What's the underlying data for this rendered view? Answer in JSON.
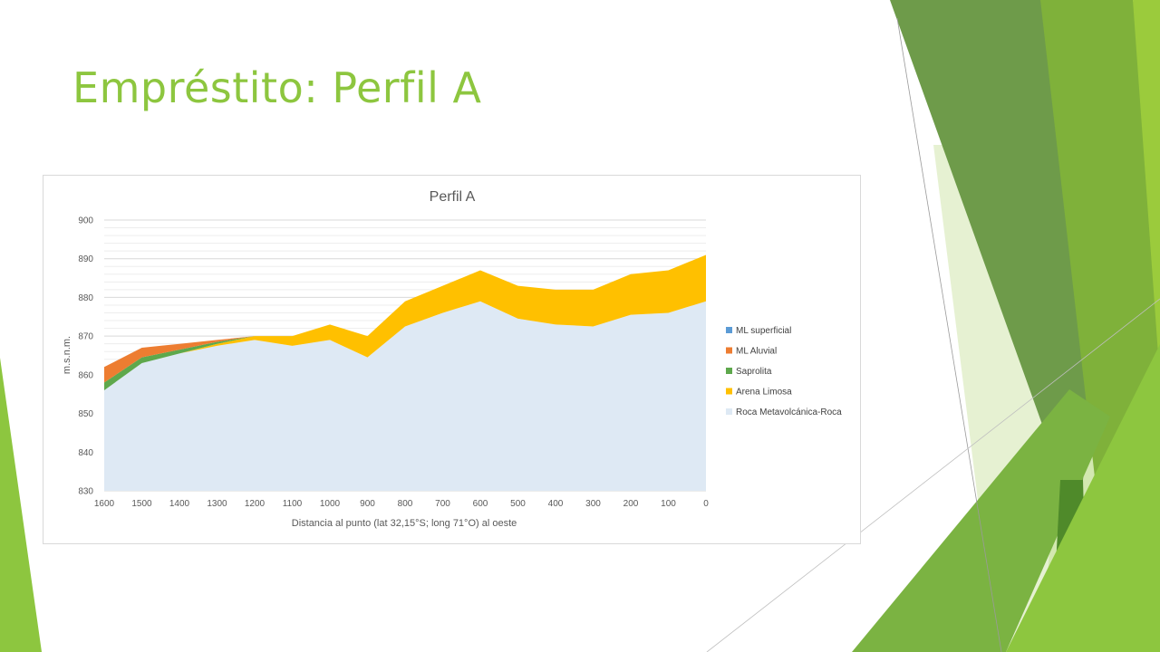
{
  "slide": {
    "title": "Empréstito: Perfil A",
    "title_color": "#8DC63F",
    "accent_colors": [
      "#8DC63F",
      "#6E9B4A",
      "#7FB13A",
      "#D3E8B0",
      "#4F8A2A"
    ]
  },
  "chart_data": {
    "type": "area",
    "stacked": true,
    "title": "Perfil A",
    "xlabel": "Distancia al punto (lat 32,15°S; long 71°O) al oeste",
    "ylabel": "m.s.n.m.",
    "x": [
      1600,
      1500,
      1400,
      1300,
      1200,
      1100,
      1000,
      900,
      800,
      700,
      600,
      500,
      400,
      300,
      200,
      100,
      0
    ],
    "x_ticks": [
      "1600",
      "1500",
      "1400",
      "1300",
      "1200",
      "1100",
      "1000",
      "900",
      "800",
      "700",
      "600",
      "500",
      "400",
      "300",
      "200",
      "100",
      "0"
    ],
    "y_ticks": [
      "830",
      "840",
      "850",
      "860",
      "870",
      "880",
      "890",
      "900"
    ],
    "ylim": [
      830,
      900
    ],
    "grid": "horizontal",
    "legend_position": "right",
    "series": [
      {
        "name": "Roca Metavolcánica-Roca",
        "color": "#DEE9F4",
        "top": [
          856,
          863,
          865.5,
          867.5,
          869,
          867.5,
          869,
          864.5,
          872.5,
          876,
          879,
          874.5,
          873,
          872.5,
          875.5,
          876,
          879
        ]
      },
      {
        "name": "Arena Limosa",
        "color": "#FFC000",
        "top": [
          856,
          863,
          865.5,
          868,
          870,
          870,
          873,
          870,
          879,
          883,
          887,
          883,
          882,
          882,
          886,
          887,
          891
        ]
      },
      {
        "name": "Saprolita",
        "color": "#5EA84C",
        "top": [
          858,
          864.5,
          866.5,
          868.5,
          870,
          870,
          873,
          870,
          879,
          883,
          887,
          883,
          882,
          882,
          886,
          887,
          891
        ]
      },
      {
        "name": "ML Aluvial",
        "color": "#ED7D31",
        "top": [
          862,
          867,
          868,
          869,
          870,
          870,
          873,
          870,
          879,
          883,
          887,
          883,
          882,
          882,
          886,
          887,
          891
        ]
      },
      {
        "name": "ML superficial",
        "color": "#5B9BD5",
        "top": [
          862,
          867,
          868,
          869,
          870,
          870,
          873,
          870,
          879,
          883,
          887,
          883,
          882,
          882,
          886,
          887,
          891
        ]
      }
    ],
    "legend_order": [
      "ML superficial",
      "ML Aluvial",
      "Saprolita",
      "Arena Limosa",
      "Roca Metavolcánica-Roca"
    ]
  }
}
